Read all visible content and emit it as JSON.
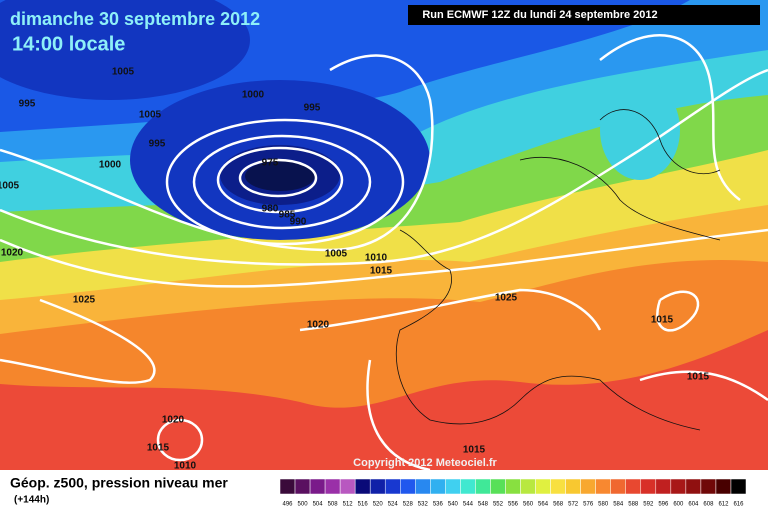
{
  "header": {
    "date": "dimanche 30 septembre 2012",
    "time": "14:00 locale",
    "run": "Run ECMWF 12Z du lundi 24 septembre 2012"
  },
  "copyright": "Copyright 2012 Meteociel.fr",
  "isobars": [
    1005,
    995,
    1005,
    1000,
    995,
    995,
    1000,
    975,
    1005,
    980,
    985,
    990,
    1005,
    1010,
    1015,
    1020,
    1025,
    1025,
    1020,
    1015,
    1015,
    1020,
    1015,
    1015,
    1010
  ],
  "legend": {
    "title": "Géop. z500, pression niveau mer",
    "subtitle": "(+144h)",
    "items": [
      {
        "label": 496,
        "color": "#3a0a3a"
      },
      {
        "label": 500,
        "color": "#5a1060"
      },
      {
        "label": 504,
        "color": "#7a1a8a"
      },
      {
        "label": 508,
        "color": "#9a30a8"
      },
      {
        "label": 512,
        "color": "#b858c0"
      },
      {
        "label": 516,
        "color": "#0a0a78"
      },
      {
        "label": 520,
        "color": "#1020a8"
      },
      {
        "label": 524,
        "color": "#1838d0"
      },
      {
        "label": 528,
        "color": "#2058ee"
      },
      {
        "label": 532,
        "color": "#2888f0"
      },
      {
        "label": 536,
        "color": "#30b0f0"
      },
      {
        "label": 540,
        "color": "#40d0f0"
      },
      {
        "label": 544,
        "color": "#40e8d0"
      },
      {
        "label": 548,
        "color": "#40e898"
      },
      {
        "label": 552,
        "color": "#58e058"
      },
      {
        "label": 556,
        "color": "#88e040"
      },
      {
        "label": 560,
        "color": "#b8e840"
      },
      {
        "label": 564,
        "color": "#e0f040"
      },
      {
        "label": 568,
        "color": "#f8e040"
      },
      {
        "label": 572,
        "color": "#f8c830"
      },
      {
        "label": 576,
        "color": "#f8a830"
      },
      {
        "label": 580,
        "color": "#f88830"
      },
      {
        "label": 584,
        "color": "#f06830"
      },
      {
        "label": 588,
        "color": "#e84830"
      },
      {
        "label": 592,
        "color": "#d83028"
      },
      {
        "label": 596,
        "color": "#c02020"
      },
      {
        "label": 600,
        "color": "#a81818"
      },
      {
        "label": 604,
        "color": "#901010"
      },
      {
        "label": 608,
        "color": "#700808"
      },
      {
        "label": 612,
        "color": "#480000"
      },
      {
        "label": 616,
        "color": "#000000"
      }
    ]
  }
}
